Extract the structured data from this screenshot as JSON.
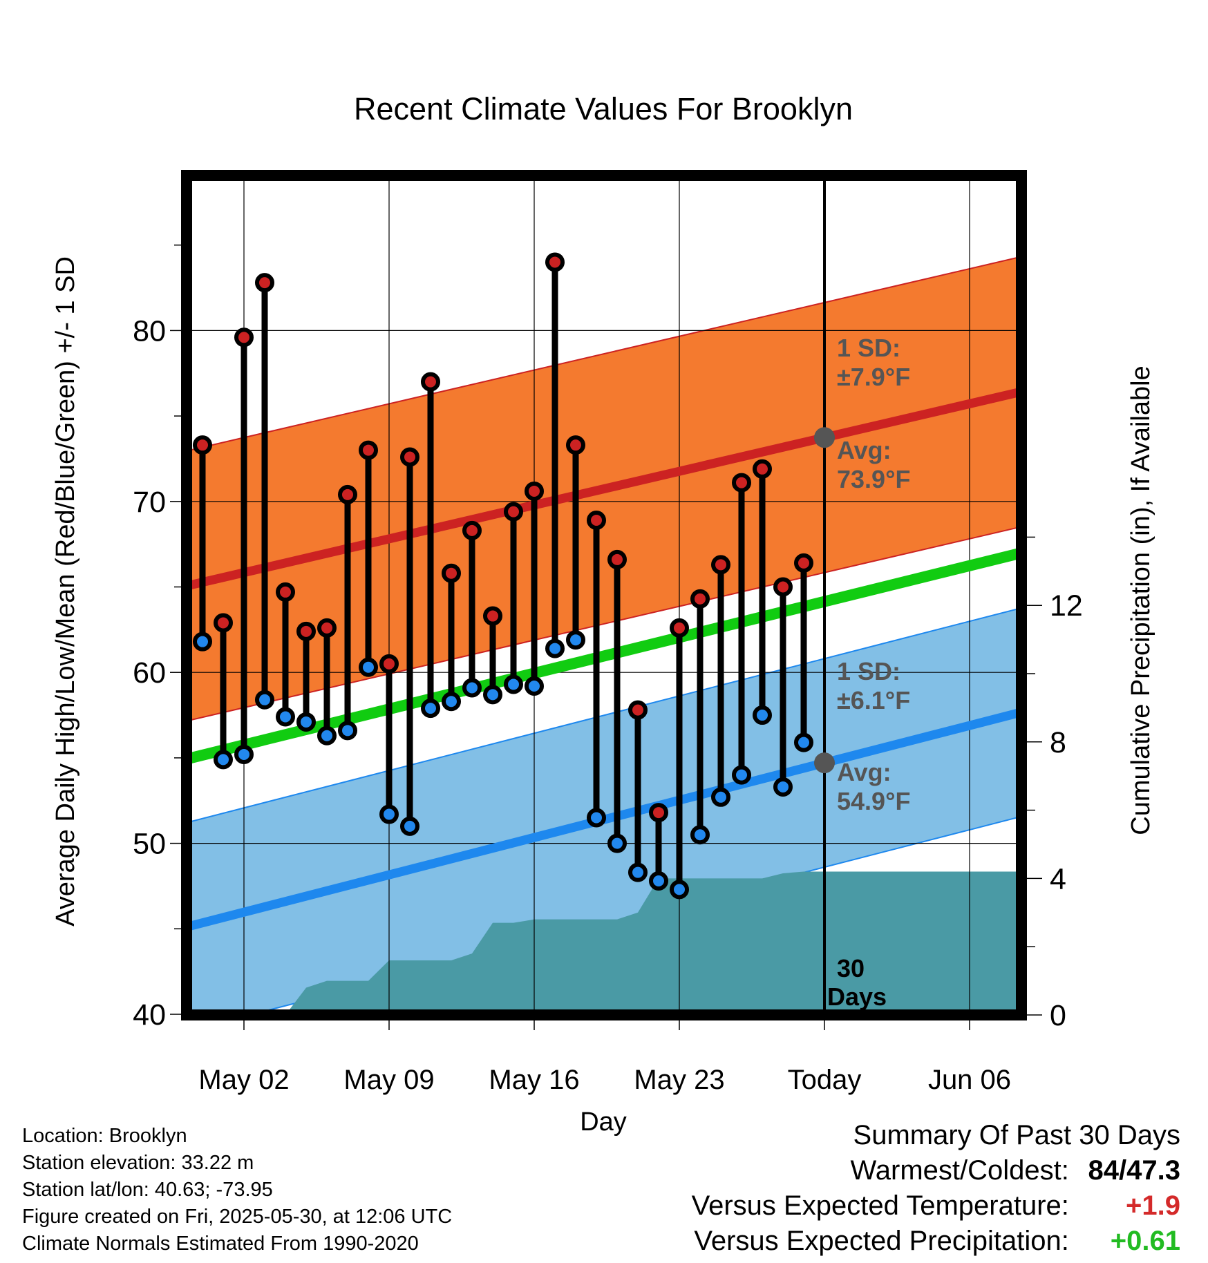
{
  "chart_data": {
    "type": "line",
    "title": "Recent Climate Values For Brooklyn",
    "xlabel": "Day",
    "ylabel": "Average Daily High/Low/Mean (Red/Blue/Green) +/- 1 SD",
    "y2label": "Cumulative Precipitation (in), If Available",
    "x_ticks": [
      "May 02",
      "May 09",
      "May 16",
      "May 23",
      "Today",
      "Jun 06"
    ],
    "y_ticks": [
      40,
      50,
      60,
      70,
      80
    ],
    "y2_ticks": [
      0,
      4,
      8,
      12
    ],
    "ylim": [
      39.5,
      89.5
    ],
    "y2lim": [
      0,
      24
    ],
    "x_range_days": [
      -29.2,
      11.2
    ],
    "grid": true,
    "days": [
      -30,
      -29,
      -28,
      -27,
      -26,
      -25,
      -24,
      -23,
      -22,
      -21,
      -20,
      -19,
      -18,
      -17,
      -16,
      -15,
      -14,
      -13,
      -12,
      -11,
      -10,
      -9,
      -8,
      -7,
      -6,
      -5,
      -4,
      -3,
      -2,
      -1
    ],
    "series": [
      {
        "name": "High",
        "color": "#cc2222",
        "values": [
          73.3,
          62.9,
          79.6,
          82.8,
          64.7,
          62.4,
          62.6,
          70.4,
          73.0,
          60.5,
          72.6,
          77.0,
          65.8,
          68.3,
          63.3,
          69.4,
          70.6,
          84.0,
          73.3,
          68.9,
          66.6,
          57.8,
          51.8,
          62.6,
          64.3,
          66.3,
          71.1,
          71.9,
          65.0,
          66.4
        ]
      },
      {
        "name": "Low",
        "color": "#2288ee",
        "values": [
          61.8,
          54.9,
          55.2,
          58.4,
          57.4,
          57.1,
          56.3,
          56.6,
          60.3,
          51.7,
          51.0,
          57.9,
          58.3,
          59.1,
          58.7,
          59.3,
          59.2,
          61.4,
          61.9,
          51.5,
          50.0,
          48.3,
          47.8,
          47.3,
          50.5,
          52.7,
          54.0,
          57.5,
          53.3,
          55.9
        ]
      }
    ],
    "normals": {
      "high_avg": [
        65.5,
        76.9
      ],
      "high_sd": 7.9,
      "low_avg": [
        45.6,
        58.2
      ],
      "low_sd": 6.1,
      "mean_avg": [
        55.4,
        67.5
      ]
    },
    "precipitation": {
      "days": [
        -30,
        -26,
        -25,
        -24,
        -23,
        -22,
        -21,
        -20,
        -19,
        -18,
        -17,
        -16,
        -15,
        -14,
        -13,
        -12,
        -11,
        -10,
        -9,
        -8,
        -7,
        -6,
        -5,
        -4,
        -3,
        -2,
        -1,
        0,
        11.2
      ],
      "values": [
        0,
        0,
        0.8,
        1.0,
        1.0,
        1.0,
        1.6,
        1.6,
        1.6,
        1.6,
        1.8,
        2.7,
        2.7,
        2.8,
        2.8,
        2.8,
        2.8,
        2.8,
        3.0,
        4.0,
        4.0,
        4.0,
        4.0,
        4.0,
        4.0,
        4.15,
        4.2,
        4.2,
        4.2
      ],
      "color": "#4a9aa5"
    },
    "annotations": {
      "high_sd_label": "1 SD:",
      "high_sd_value": "±7.9°F",
      "high_avg_label": "Avg:",
      "high_avg_value": "73.9°F",
      "low_sd_label": "1 SD:",
      "low_sd_value": "±6.1°F",
      "low_avg_label": "Avg:",
      "low_avg_value": "54.9°F",
      "period_number": "30",
      "period_unit": "Days"
    }
  },
  "info": {
    "location": "Location: Brooklyn",
    "elevation": "Station elevation: 33.22 m",
    "latlon": "Station lat/lon: 40.63; -73.95",
    "created": "Figure created on Fri, 2025-05-30, at 12:06 UTC",
    "normals": "Climate Normals Estimated From 1990-2020"
  },
  "summary": {
    "title": "Summary Of Past 30 Days",
    "warmest_label": "Warmest/Coldest:",
    "warmest_value": "84/47.3",
    "temp_label": "Versus Expected Temperature:",
    "temp_value": "+1.9",
    "temp_color": "#d42a2a",
    "precip_label": "Versus Expected Precipitation:",
    "precip_value": "+0.61",
    "precip_color": "#22bb22"
  }
}
